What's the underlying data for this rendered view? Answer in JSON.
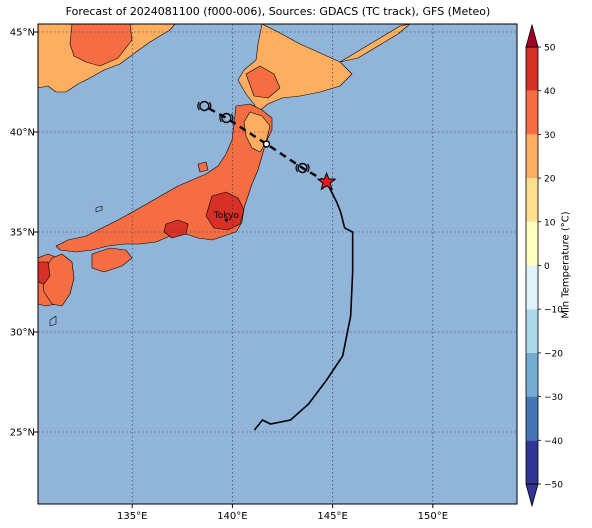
{
  "title": "Forecast of 2024081100 (f000-006), Sources: GDACS (TC track), GFS (Meteo)",
  "map": {
    "lon_range": [
      130.3,
      154.2
    ],
    "lat_range": [
      21.4,
      45.4
    ],
    "lon_ticks": [
      135,
      140,
      145,
      150
    ],
    "lat_ticks": [
      25,
      30,
      35,
      40,
      45
    ],
    "lon_tick_labels": [
      "135°E",
      "140°E",
      "145°E",
      "150°E"
    ],
    "lat_tick_labels": [
      "25°N",
      "30°N",
      "35°N",
      "40°N",
      "45°N"
    ],
    "gridlines": true,
    "ocean_color": "#91b4d9",
    "city": {
      "name": "Tokyo",
      "lon": 139.7,
      "lat": 35.7
    }
  },
  "tc_track": {
    "observed_line": [
      [
        141.1,
        25.1
      ],
      [
        141.5,
        25.6
      ],
      [
        141.9,
        25.4
      ],
      [
        142.9,
        25.6
      ],
      [
        143.8,
        26.4
      ],
      [
        144.7,
        27.6
      ],
      [
        145.5,
        28.8
      ],
      [
        145.9,
        30.8
      ],
      [
        146.0,
        33.0
      ],
      [
        146.0,
        35.0
      ],
      [
        145.6,
        35.2
      ],
      [
        145.4,
        36.0
      ],
      [
        145.2,
        36.5
      ],
      [
        144.7,
        37.5
      ]
    ],
    "current_position": {
      "lon": 144.7,
      "lat": 37.5
    },
    "forecast_points": [
      [
        143.5,
        38.2
      ],
      [
        141.7,
        39.4
      ],
      [
        139.7,
        40.7
      ],
      [
        138.6,
        41.3
      ]
    ]
  },
  "colorbar": {
    "label": "Min Temperature (°C)",
    "ticks": [
      -50,
      -40,
      -30,
      -20,
      -10,
      0,
      10,
      20,
      30,
      40,
      50
    ],
    "tick_labels": [
      "−50",
      "−40",
      "−30",
      "−20",
      "−10",
      "0",
      "10",
      "20",
      "30",
      "40",
      "50"
    ],
    "colors": [
      "#313695",
      "#4575b4",
      "#74add1",
      "#abd9e9",
      "#e0f3f8",
      "#ffffbf",
      "#fee090",
      "#fdae61",
      "#f46d43",
      "#d73027",
      "#a50026"
    ]
  },
  "temperature_legend_colors": {
    "10_20": "#fdae61",
    "20_30": "#f46d43",
    "30_40": "#d73027"
  }
}
